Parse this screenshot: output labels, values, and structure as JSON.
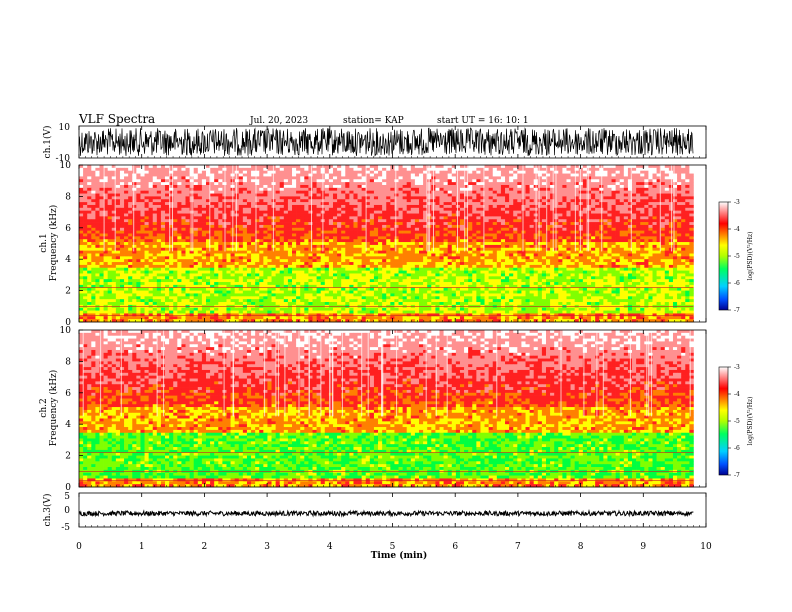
{
  "header": {
    "title": "VLF Spectra",
    "date": "Jul. 20, 2023",
    "station": "station= KAP",
    "start": "start UT =  16: 10: 1"
  },
  "colorbar": {
    "label": "log(PSD)(V²/Hz)",
    "ticks": [
      "-3",
      "-4",
      "-5",
      "-6",
      "-7"
    ],
    "range": [
      -7,
      -3
    ],
    "colors": [
      "#000090",
      "#0050ff",
      "#00d0ff",
      "#00ff60",
      "#b0ff00",
      "#ffff00",
      "#ff8000",
      "#ff0000",
      "#ffffff"
    ]
  },
  "chart_data": [
    {
      "type": "line",
      "panel": "ch1-waveform",
      "ylabel": "ch.1(V)",
      "ylim": [
        -10,
        10
      ],
      "y_ticks": [
        "10",
        "-10"
      ],
      "xlim": [
        0,
        10
      ],
      "data_extent_x": [
        0,
        9.8
      ],
      "description_series": "dense voltage trace spanning roughly -10 to 10 V"
    },
    {
      "type": "heatmap",
      "panel": "ch1-spectrogram",
      "ylabel": "ch.1 Frequency (kHz)",
      "ylim": [
        0,
        10
      ],
      "y_ticks": [
        "0",
        "2",
        "4",
        "6",
        "8",
        "10"
      ],
      "xlim": [
        0,
        10
      ],
      "data_extent_x": [
        0,
        9.8
      ],
      "z_label": "log(PSD)(V²/Hz)",
      "zlim": [
        -7,
        -3
      ]
    },
    {
      "type": "heatmap",
      "panel": "ch2-spectrogram",
      "ylabel": "ch.2 Frequency (kHz)",
      "ylim": [
        0,
        10
      ],
      "y_ticks": [
        "0",
        "2",
        "4",
        "6",
        "8",
        "10"
      ],
      "xlim": [
        0,
        10
      ],
      "data_extent_x": [
        0,
        9.8
      ],
      "z_label": "log(PSD)(V²/Hz)",
      "zlim": [
        -7,
        -3
      ]
    },
    {
      "type": "line",
      "panel": "ch3-waveform",
      "ylabel": "ch.3(V)",
      "ylim": [
        -5,
        5
      ],
      "y_ticks": [
        "5",
        "0",
        "-5"
      ],
      "xlim": [
        0,
        10
      ],
      "data_extent_x": [
        0,
        9.8
      ],
      "description_series": "narrow band near -1 V"
    }
  ],
  "xaxis": {
    "label": "Time (min)",
    "ticks": [
      "0",
      "1",
      "2",
      "3",
      "4",
      "5",
      "6",
      "7",
      "8",
      "9",
      "10"
    ]
  }
}
